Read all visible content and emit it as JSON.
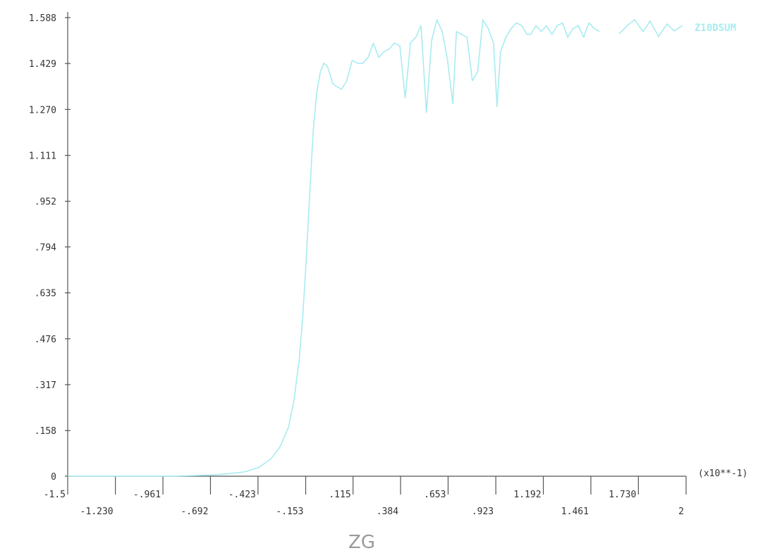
{
  "chart_data": {
    "type": "line",
    "xlabel": "ZG",
    "ylabel": "",
    "x_multiplier_label": "(x10**-1)",
    "xlim": [
      -1.5,
      2
    ],
    "ylim": [
      0,
      1.588
    ],
    "grid": false,
    "legend_position": "top-right",
    "y_ticks": [
      {
        "value": 0,
        "label": "0"
      },
      {
        "value": 0.158,
        "label": ".158"
      },
      {
        "value": 0.317,
        "label": ".317"
      },
      {
        "value": 0.476,
        "label": ".476"
      },
      {
        "value": 0.635,
        "label": ".635"
      },
      {
        "value": 0.794,
        "label": ".794"
      },
      {
        "value": 0.952,
        "label": ".952"
      },
      {
        "value": 1.111,
        "label": "1.111"
      },
      {
        "value": 1.27,
        "label": "1.270"
      },
      {
        "value": 1.429,
        "label": "1.429"
      },
      {
        "value": 1.588,
        "label": "1.588"
      }
    ],
    "x_ticks_upper": [
      {
        "value": -1.5,
        "label": "-1.5"
      },
      {
        "value": -0.961,
        "label": "-.961"
      },
      {
        "value": -0.423,
        "label": "-.423"
      },
      {
        "value": 0.115,
        "label": ".115"
      },
      {
        "value": 0.653,
        "label": ".653"
      },
      {
        "value": 1.192,
        "label": "1.192"
      },
      {
        "value": 1.73,
        "label": "1.730"
      }
    ],
    "x_ticks_lower": [
      {
        "value": -1.23,
        "label": "-1.230"
      },
      {
        "value": -0.692,
        "label": "-.692"
      },
      {
        "value": -0.153,
        "label": "-.153"
      },
      {
        "value": 0.384,
        "label": ".384"
      },
      {
        "value": 0.923,
        "label": ".923"
      },
      {
        "value": 1.461,
        "label": "1.461"
      },
      {
        "value": 2,
        "label": "2"
      }
    ],
    "series": [
      {
        "name": "Z10DSUM",
        "color": "#a8ecf0",
        "x": [
          -1.5,
          -1.2,
          -0.96,
          -0.8,
          -0.7,
          -0.6,
          -0.5,
          -0.42,
          -0.35,
          -0.3,
          -0.25,
          -0.22,
          -0.19,
          -0.17,
          -0.15,
          -0.13,
          -0.11,
          -0.09,
          -0.07,
          -0.05,
          -0.03,
          -0.01,
          0.0,
          0.02,
          0.05,
          0.08,
          0.11,
          0.14,
          0.17,
          0.2,
          0.23,
          0.26,
          0.29,
          0.32,
          0.35,
          0.38,
          0.41,
          0.44,
          0.47,
          0.5,
          0.53,
          0.56,
          0.59,
          0.62,
          0.65,
          0.68,
          0.7,
          0.73,
          0.76,
          0.79,
          0.82,
          0.85,
          0.88,
          0.91,
          0.93,
          0.95,
          0.98,
          1.01,
          1.04,
          1.07,
          1.1,
          1.12,
          1.15,
          1.18,
          1.21,
          1.24,
          1.27,
          1.3,
          1.33,
          1.36,
          1.39,
          1.42,
          1.45,
          1.48,
          1.51
        ],
        "y": [
          0,
          0,
          0,
          0.002,
          0.004,
          0.008,
          0.015,
          0.03,
          0.06,
          0.1,
          0.17,
          0.26,
          0.4,
          0.55,
          0.75,
          0.98,
          1.2,
          1.33,
          1.4,
          1.43,
          1.42,
          1.38,
          1.36,
          1.35,
          1.34,
          1.37,
          1.44,
          1.43,
          1.43,
          1.45,
          1.5,
          1.45,
          1.47,
          1.48,
          1.5,
          1.49,
          1.31,
          1.5,
          1.52,
          1.56,
          1.26,
          1.51,
          1.58,
          1.54,
          1.44,
          1.29,
          1.54,
          1.53,
          1.52,
          1.37,
          1.4,
          1.58,
          1.55,
          1.5,
          1.28,
          1.47,
          1.52,
          1.55,
          1.57,
          1.56,
          1.53,
          1.53,
          1.56,
          1.54,
          1.56,
          1.53,
          1.56,
          1.57,
          1.52,
          1.55,
          1.56,
          1.52,
          1.57,
          1.55,
          1.54
        ]
      }
    ]
  }
}
